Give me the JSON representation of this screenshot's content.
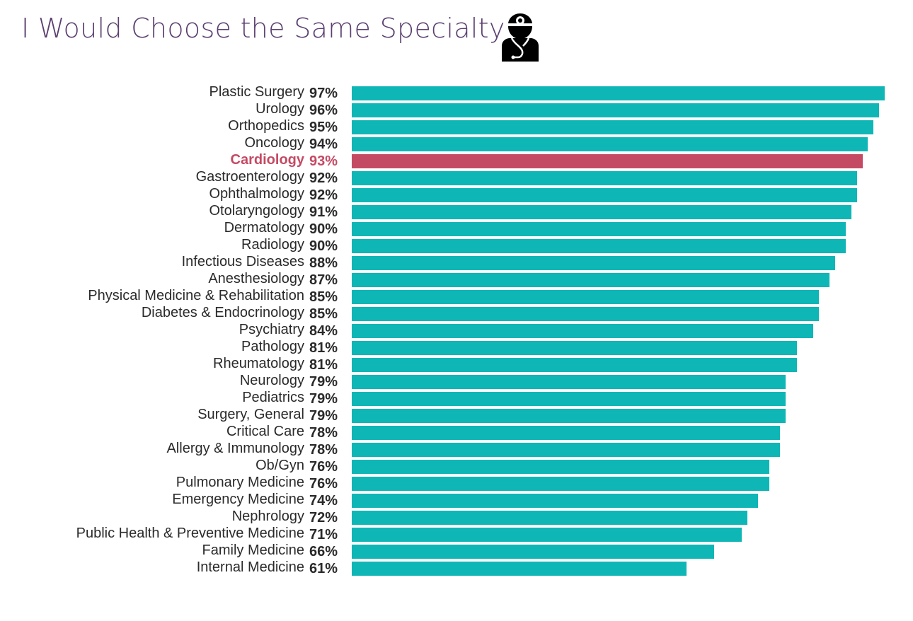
{
  "chart_data": {
    "type": "bar",
    "orientation": "horizontal",
    "title": "I Would Choose the Same Specialty",
    "title_icon": "doctor-stethoscope-icon",
    "categories": [
      "Plastic Surgery",
      "Urology",
      "Orthopedics",
      "Oncology",
      "Cardiology",
      "Gastroenterology",
      "Ophthalmology",
      "Otolaryngology",
      "Dermatology",
      "Radiology",
      "Infectious Diseases",
      "Anesthesiology",
      "Physical Medicine & Rehabilitation",
      "Diabetes & Endocrinology",
      "Psychiatry",
      "Pathology",
      "Rheumatology",
      "Neurology",
      "Pediatrics",
      "Surgery, General",
      "Critical Care",
      "Allergy & Immunology",
      "Ob/Gyn",
      "Pulmonary Medicine",
      "Emergency Medicine",
      "Nephrology",
      "Public Health & Preventive Medicine",
      "Family Medicine",
      "Internal Medicine"
    ],
    "values": [
      97,
      96,
      95,
      94,
      93,
      92,
      92,
      91,
      90,
      90,
      88,
      87,
      85,
      85,
      84,
      81,
      81,
      79,
      79,
      79,
      78,
      78,
      76,
      76,
      74,
      72,
      71,
      66,
      61
    ],
    "value_labels": [
      "97%",
      "96%",
      "95%",
      "94%",
      "93%",
      "92%",
      "92%",
      "91%",
      "90%",
      "90%",
      "88%",
      "87%",
      "85%",
      "85%",
      "84%",
      "81%",
      "81%",
      "79%",
      "79%",
      "79%",
      "78%",
      "78%",
      "76%",
      "76%",
      "74%",
      "72%",
      "71%",
      "66%",
      "61%"
    ],
    "highlight": "Cardiology",
    "xlim": [
      0,
      100
    ],
    "grid": false,
    "legend": "none",
    "colors": {
      "bar": "#0fb6b6",
      "highlight": "#c44a63",
      "title": "#5b3f70",
      "text": "#2a2a2a"
    }
  }
}
